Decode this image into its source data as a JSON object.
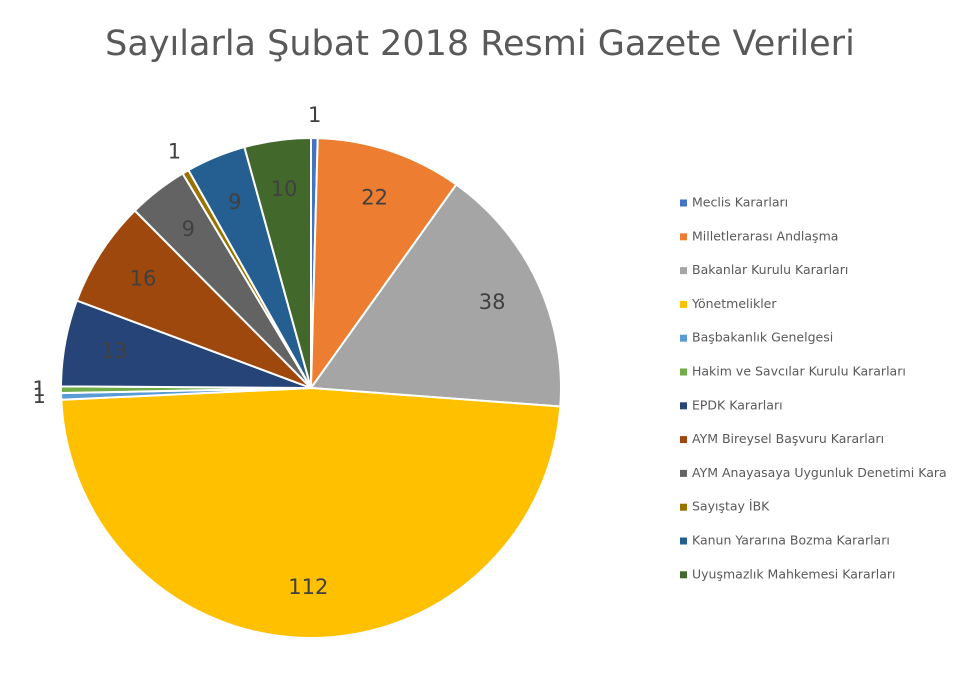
{
  "chart_data": {
    "type": "pie",
    "title": "Sayılarla Şubat 2018 Resmi Gazete Verileri",
    "categories": [
      "Meclis Kararları",
      "Milletlerarası Andlaşma",
      "Bakanlar Kurulu Kararları",
      "Yönetmelikler",
      "Başbakanlık Genelgesi",
      "Hakim ve Savcılar Kurulu Kararları",
      "EPDK Kararları",
      "AYM Bireysel Başvuru Kararları",
      "AYM Anayasaya Uygunluk Denetimi Kara",
      "Sayıştay İBK",
      "Kanun Yararına Bozma Kararları",
      "Uyuşmazlık Mahkemesi Kararları"
    ],
    "values": [
      1,
      22,
      38,
      112,
      1,
      1,
      13,
      16,
      9,
      1,
      9,
      10
    ],
    "colors": [
      "#4472c4",
      "#ed7d31",
      "#a5a5a5",
      "#ffc000",
      "#5b9bd5",
      "#70ad47",
      "#264478",
      "#9e480e",
      "#636363",
      "#997300",
      "#255e91",
      "#43682b"
    ],
    "legend": "right"
  }
}
